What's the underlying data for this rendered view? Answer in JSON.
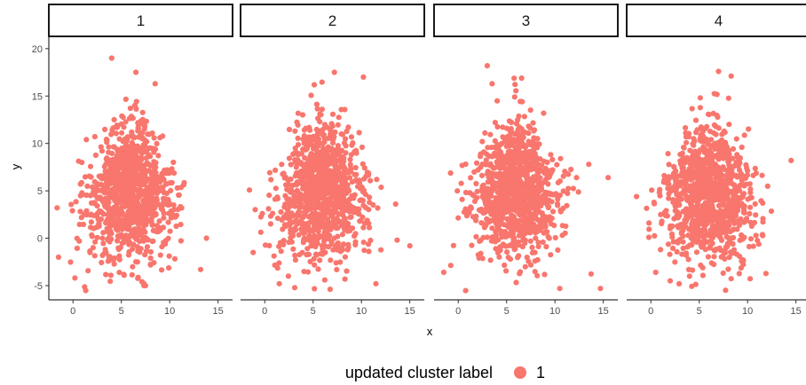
{
  "chart_data": {
    "type": "scatter",
    "facets": [
      "1",
      "2",
      "3",
      "4"
    ],
    "xlabel": "x",
    "ylabel": "y",
    "xlim": [
      -2.5,
      16.5
    ],
    "ylim": [
      -6.5,
      21.2
    ],
    "x_ticks": [
      0,
      5,
      10,
      15
    ],
    "y_ticks": [
      -5,
      0,
      5,
      10,
      15,
      20
    ],
    "grid": false,
    "point_color": "#F8766D",
    "legend": {
      "title": "updated cluster label",
      "entries": [
        "1"
      ],
      "position": "bottom"
    },
    "n_points_per_panel": 1000,
    "distribution": {
      "x_mean": 6.0,
      "x_sd": 2.4,
      "y_mean": 4.8,
      "y_sd": 3.6
    },
    "series": [
      {
        "facet": "1",
        "notable_points": [
          [
            4.0,
            19.0
          ],
          [
            6.5,
            17.5
          ],
          [
            8.5,
            16.3
          ],
          [
            13.2,
            -3.3
          ],
          [
            13.8,
            0.0
          ],
          [
            0.2,
            -4.2
          ],
          [
            -1.5,
            -2.0
          ]
        ]
      },
      {
        "facet": "2",
        "notable_points": [
          [
            7.2,
            17.5
          ],
          [
            10.2,
            17.0
          ],
          [
            15.0,
            -0.8
          ],
          [
            11.5,
            -4.8
          ],
          [
            1.5,
            -4.8
          ],
          [
            -1.2,
            -1.5
          ]
        ]
      },
      {
        "facet": "3",
        "notable_points": [
          [
            3.0,
            18.2
          ],
          [
            3.5,
            16.3
          ],
          [
            13.5,
            7.8
          ],
          [
            15.5,
            6.4
          ],
          [
            14.7,
            -5.3
          ],
          [
            10.5,
            -5.3
          ],
          [
            -1.5,
            -3.6
          ]
        ]
      },
      {
        "facet": "4",
        "notable_points": [
          [
            7.0,
            17.6
          ],
          [
            8.3,
            17.1
          ],
          [
            14.5,
            8.2
          ],
          [
            -0.2,
            1.6
          ],
          [
            0.5,
            -3.6
          ],
          [
            2.0,
            -4.5
          ],
          [
            4.0,
            -4.0
          ]
        ]
      }
    ]
  }
}
